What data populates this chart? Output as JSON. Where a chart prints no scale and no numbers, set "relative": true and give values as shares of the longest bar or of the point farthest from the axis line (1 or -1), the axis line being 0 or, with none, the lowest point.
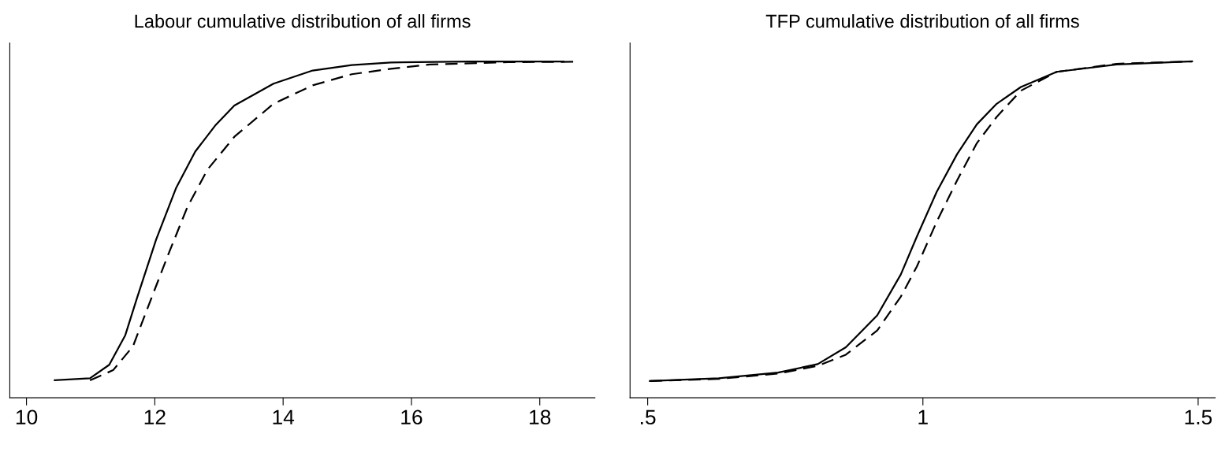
{
  "chart_data": [
    {
      "type": "line",
      "title": "Labour cumulative distribution of all firms",
      "relative": true,
      "grid": false,
      "legend": false,
      "tick_labels": "x",
      "xlim": [
        9.74,
        18.86
      ],
      "xticks": [
        10,
        12,
        14,
        16,
        18
      ],
      "series": [
        {
          "color": "#000000",
          "line_style": "solid",
          "x": [
            10.44,
            10.99,
            11.29,
            11.54,
            11.72,
            12.02,
            12.33,
            12.63,
            12.94,
            13.24,
            13.85,
            14.46,
            15.07,
            15.68,
            16.9,
            18.37
          ],
          "values": [
            0.052,
            0.058,
            0.098,
            0.186,
            0.295,
            0.47,
            0.623,
            0.732,
            0.809,
            0.869,
            0.934,
            0.973,
            0.989,
            0.997,
            1.0,
            1.0
          ]
        },
        {
          "color": "#000000",
          "line_style": "dashed",
          "x": [
            10.99,
            11.35,
            11.66,
            11.9,
            12.21,
            12.51,
            12.82,
            13.24,
            13.85,
            14.46,
            15.07,
            15.68,
            16.29,
            17.51,
            18.61
          ],
          "values": [
            0.052,
            0.082,
            0.153,
            0.273,
            0.426,
            0.568,
            0.678,
            0.776,
            0.874,
            0.929,
            0.962,
            0.978,
            0.991,
            0.998,
            0.999
          ]
        }
      ]
    },
    {
      "type": "line",
      "title": "TFP cumulative distribution of all firms",
      "relative": true,
      "grid": false,
      "legend": false,
      "tick_labels": "x",
      "xlim": [
        0.468,
        1.531
      ],
      "xticks": [
        {
          "value": 0.5,
          "label": ".5"
        },
        1,
        {
          "value": 1.5,
          "label": "1.5"
        }
      ],
      "series": [
        {
          "color": "#000000",
          "line_style": "solid",
          "x": [
            0.504,
            0.629,
            0.737,
            0.809,
            0.86,
            0.917,
            0.96,
            0.989,
            1.025,
            1.062,
            1.098,
            1.134,
            1.178,
            1.243,
            1.352,
            1.489
          ],
          "values": [
            0.05,
            0.058,
            0.075,
            0.1,
            0.15,
            0.245,
            0.367,
            0.479,
            0.612,
            0.724,
            0.813,
            0.874,
            0.924,
            0.969,
            0.991,
            1.0
          ]
        },
        {
          "color": "#000000",
          "line_style": "dashed",
          "x": [
            0.504,
            0.629,
            0.737,
            0.809,
            0.86,
            0.917,
            0.96,
            0.989,
            1.025,
            1.062,
            1.098,
            1.134,
            1.178,
            1.243,
            1.352,
            1.489
          ],
          "values": [
            0.05,
            0.056,
            0.072,
            0.095,
            0.128,
            0.2,
            0.301,
            0.39,
            0.523,
            0.646,
            0.757,
            0.835,
            0.913,
            0.969,
            0.993,
            1.0
          ]
        }
      ]
    }
  ]
}
